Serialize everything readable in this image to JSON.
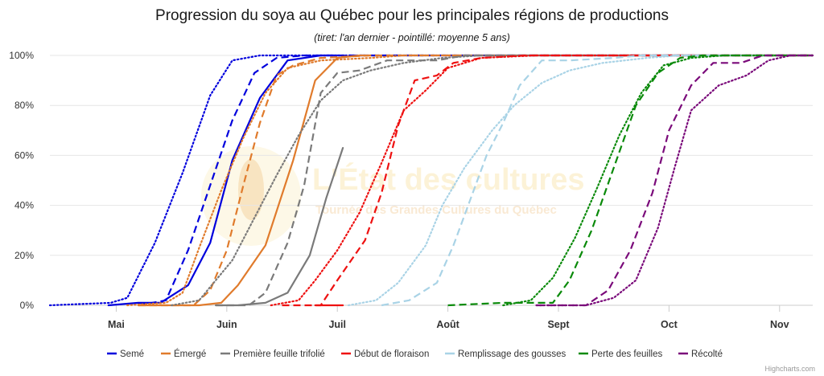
{
  "chart_data": {
    "type": "line",
    "title": "Progression du soya au Québec pour les principales régions de productions",
    "subtitle": "(tiret: l'an dernier - pointillé: moyenne 5 ans)",
    "x_domain": [
      2.4,
      9.3
    ],
    "ylim": [
      0,
      100
    ],
    "yticks": [
      0,
      20,
      40,
      60,
      80,
      100
    ],
    "ytick_labels": [
      "0%",
      "20%",
      "40%",
      "60%",
      "80%",
      "100%"
    ],
    "xticks": [
      3,
      4,
      5,
      6,
      7,
      8,
      9
    ],
    "xtick_labels": [
      "Mai",
      "Juin",
      "Juil",
      "Août",
      "Sept",
      "Oct",
      "Nov"
    ],
    "grid": true,
    "legend_position": "bottom",
    "credits": "Highcharts.com",
    "watermark": {
      "line1": "L'État des cultures",
      "line2": "Tournée des Grandes Cultures du Québec"
    },
    "series": [
      {
        "name": "Semé",
        "color": "#0000dd",
        "current": [
          [
            2.93,
            0
          ],
          [
            3.2,
            1
          ],
          [
            3.4,
            1
          ],
          [
            3.65,
            8
          ],
          [
            3.85,
            25
          ],
          [
            4.05,
            58
          ],
          [
            4.3,
            83
          ],
          [
            4.55,
            98
          ],
          [
            4.85,
            100
          ],
          [
            5.0,
            100
          ]
        ],
        "last_year": [
          [
            3.2,
            0
          ],
          [
            3.45,
            2
          ],
          [
            3.65,
            22
          ],
          [
            3.85,
            48
          ],
          [
            4.05,
            74
          ],
          [
            4.25,
            93
          ],
          [
            4.45,
            99
          ],
          [
            4.7,
            100
          ],
          [
            9.3,
            100
          ]
        ],
        "avg5": [
          [
            2.4,
            0
          ],
          [
            2.95,
            1
          ],
          [
            3.1,
            3
          ],
          [
            3.35,
            25
          ],
          [
            3.6,
            53
          ],
          [
            3.85,
            84
          ],
          [
            4.05,
            98
          ],
          [
            4.3,
            100
          ],
          [
            9.3,
            100
          ]
        ]
      },
      {
        "name": "Émergé",
        "color": "#e07b2c",
        "current": [
          [
            3.2,
            0
          ],
          [
            3.75,
            0
          ],
          [
            3.95,
            1
          ],
          [
            4.1,
            8
          ],
          [
            4.35,
            24
          ],
          [
            4.6,
            58
          ],
          [
            4.8,
            90
          ],
          [
            5.0,
            99
          ],
          [
            5.2,
            100
          ],
          [
            5.3,
            100
          ]
        ],
        "last_year": [
          [
            3.2,
            0
          ],
          [
            3.7,
            0
          ],
          [
            3.85,
            6
          ],
          [
            4.0,
            22
          ],
          [
            4.15,
            48
          ],
          [
            4.3,
            73
          ],
          [
            4.45,
            92
          ],
          [
            4.6,
            96
          ],
          [
            4.85,
            99
          ],
          [
            5.3,
            100
          ],
          [
            9.3,
            100
          ]
        ],
        "avg5": [
          [
            3.1,
            0
          ],
          [
            3.45,
            1
          ],
          [
            3.6,
            5
          ],
          [
            3.75,
            23
          ],
          [
            3.95,
            46
          ],
          [
            4.15,
            67
          ],
          [
            4.35,
            85
          ],
          [
            4.55,
            95
          ],
          [
            4.85,
            98
          ],
          [
            5.3,
            99
          ],
          [
            5.6,
            100
          ],
          [
            9.3,
            100
          ]
        ]
      },
      {
        "name": "Première feuille trifolié",
        "color": "#7a7a7a",
        "current": [
          [
            3.9,
            0
          ],
          [
            4.1,
            0
          ],
          [
            4.35,
            1
          ],
          [
            4.55,
            5
          ],
          [
            4.75,
            20
          ],
          [
            4.9,
            43
          ],
          [
            5.05,
            63
          ]
        ],
        "last_year": [
          [
            3.9,
            0
          ],
          [
            4.2,
            0
          ],
          [
            4.35,
            5
          ],
          [
            4.55,
            25
          ],
          [
            4.7,
            48
          ],
          [
            4.85,
            85
          ],
          [
            5.0,
            93
          ],
          [
            5.2,
            94
          ],
          [
            5.45,
            98
          ],
          [
            5.9,
            98
          ],
          [
            6.15,
            100
          ],
          [
            9.3,
            100
          ]
        ],
        "avg5": [
          [
            3.5,
            0
          ],
          [
            3.75,
            2
          ],
          [
            3.9,
            10
          ],
          [
            4.05,
            18
          ],
          [
            4.25,
            35
          ],
          [
            4.45,
            52
          ],
          [
            4.65,
            68
          ],
          [
            4.85,
            82
          ],
          [
            5.05,
            90
          ],
          [
            5.3,
            94
          ],
          [
            5.6,
            97
          ],
          [
            5.95,
            99
          ],
          [
            6.3,
            100
          ],
          [
            9.3,
            100
          ]
        ]
      },
      {
        "name": "Début de floraison",
        "color": "#ee1111",
        "current": [
          [
            4.8,
            0
          ],
          [
            5.05,
            0
          ]
        ],
        "last_year": [
          [
            4.5,
            0
          ],
          [
            4.85,
            0
          ],
          [
            5.0,
            10
          ],
          [
            5.25,
            26
          ],
          [
            5.4,
            45
          ],
          [
            5.55,
            72
          ],
          [
            5.7,
            90
          ],
          [
            5.9,
            92
          ],
          [
            6.05,
            97
          ],
          [
            6.3,
            99
          ],
          [
            6.7,
            100
          ],
          [
            9.3,
            100
          ]
        ],
        "avg5": [
          [
            4.4,
            0
          ],
          [
            4.65,
            2
          ],
          [
            4.8,
            10
          ],
          [
            5.0,
            22
          ],
          [
            5.2,
            37
          ],
          [
            5.4,
            57
          ],
          [
            5.6,
            78
          ],
          [
            5.8,
            86
          ],
          [
            6.0,
            95
          ],
          [
            6.3,
            99
          ],
          [
            6.8,
            100
          ],
          [
            9.3,
            100
          ]
        ]
      },
      {
        "name": "Remplissage des gousses",
        "color": "#a9d3e6",
        "current": [],
        "last_year": [
          [
            5.4,
            0
          ],
          [
            5.65,
            2
          ],
          [
            5.9,
            9
          ],
          [
            6.05,
            24
          ],
          [
            6.2,
            42
          ],
          [
            6.35,
            60
          ],
          [
            6.5,
            73
          ],
          [
            6.65,
            88
          ],
          [
            6.85,
            98
          ],
          [
            7.1,
            98
          ],
          [
            7.5,
            99
          ],
          [
            7.75,
            100
          ],
          [
            9.3,
            100
          ]
        ],
        "avg5": [
          [
            5.1,
            0
          ],
          [
            5.35,
            2
          ],
          [
            5.55,
            9
          ],
          [
            5.8,
            24
          ],
          [
            5.95,
            40
          ],
          [
            6.15,
            55
          ],
          [
            6.4,
            70
          ],
          [
            6.6,
            80
          ],
          [
            6.85,
            89
          ],
          [
            7.1,
            94
          ],
          [
            7.4,
            97
          ],
          [
            7.8,
            99
          ],
          [
            8.1,
            100
          ],
          [
            9.3,
            100
          ]
        ]
      },
      {
        "name": "Perte des feuilles",
        "color": "#0a8a0a",
        "current": [],
        "last_year": [
          [
            6.0,
            0
          ],
          [
            6.5,
            1
          ],
          [
            6.95,
            1
          ],
          [
            7.1,
            10
          ],
          [
            7.3,
            30
          ],
          [
            7.5,
            55
          ],
          [
            7.7,
            80
          ],
          [
            7.9,
            93
          ],
          [
            8.1,
            99
          ],
          [
            8.3,
            100
          ],
          [
            9.3,
            100
          ]
        ],
        "avg5": [
          [
            6.5,
            0
          ],
          [
            6.75,
            2
          ],
          [
            6.95,
            11
          ],
          [
            7.15,
            27
          ],
          [
            7.35,
            47
          ],
          [
            7.55,
            68
          ],
          [
            7.75,
            85
          ],
          [
            7.95,
            96
          ],
          [
            8.2,
            99
          ],
          [
            8.5,
            100
          ],
          [
            9.3,
            100
          ]
        ]
      },
      {
        "name": "Récolté",
        "color": "#7a0a7a",
        "current": [],
        "last_year": [
          [
            6.8,
            0
          ],
          [
            7.25,
            0
          ],
          [
            7.45,
            6
          ],
          [
            7.65,
            22
          ],
          [
            7.85,
            45
          ],
          [
            8.0,
            70
          ],
          [
            8.2,
            88
          ],
          [
            8.4,
            97
          ],
          [
            8.65,
            97
          ],
          [
            8.85,
            100
          ],
          [
            9.3,
            100
          ]
        ],
        "avg5": [
          [
            6.8,
            0
          ],
          [
            7.25,
            0
          ],
          [
            7.5,
            3
          ],
          [
            7.7,
            10
          ],
          [
            7.9,
            31
          ],
          [
            8.05,
            55
          ],
          [
            8.2,
            78
          ],
          [
            8.45,
            88
          ],
          [
            8.7,
            92
          ],
          [
            8.9,
            98
          ],
          [
            9.1,
            100
          ],
          [
            9.3,
            100
          ]
        ]
      }
    ]
  }
}
